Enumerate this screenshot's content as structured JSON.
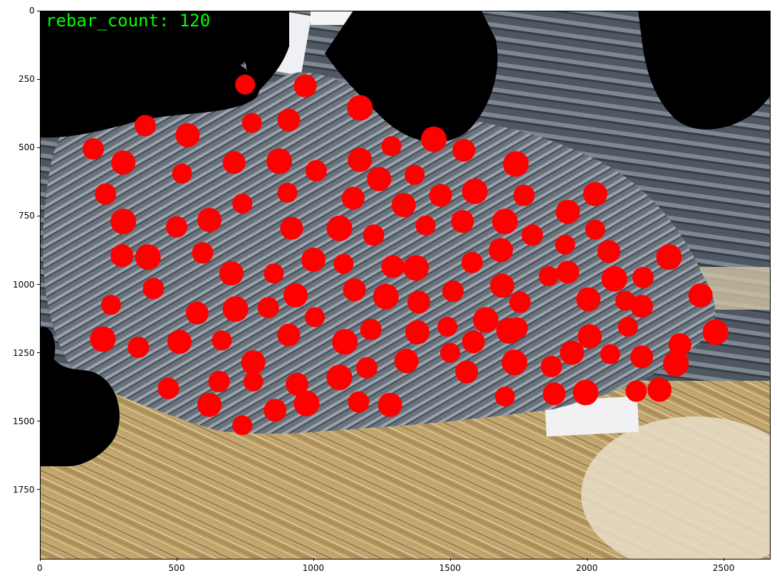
{
  "overlay": {
    "count_text": "rebar_count: 120",
    "count_color": "#00ff00",
    "marker_color": "#ff0000",
    "mask_color": "#000000"
  },
  "scene": {
    "description_icon": "rebar-bundle-photo"
  },
  "axes": {
    "x_ticks": [
      {
        "value": 0,
        "label": "0"
      },
      {
        "value": 500,
        "label": "500"
      },
      {
        "value": 1000,
        "label": "1000"
      },
      {
        "value": 1500,
        "label": "1500"
      },
      {
        "value": 2000,
        "label": "2000"
      },
      {
        "value": 2500,
        "label": "2500"
      }
    ],
    "y_ticks": [
      {
        "value": 0,
        "label": "0"
      },
      {
        "value": 250,
        "label": "250"
      },
      {
        "value": 500,
        "label": "500"
      },
      {
        "value": 750,
        "label": "750"
      },
      {
        "value": 1000,
        "label": "1000"
      },
      {
        "value": 1250,
        "label": "1250"
      },
      {
        "value": 1500,
        "label": "1500"
      },
      {
        "value": 1750,
        "label": "1750"
      }
    ],
    "x_range": [
      0,
      2666
    ],
    "y_range": [
      2000,
      0
    ]
  },
  "detections": [
    [
      750,
      270
    ],
    [
      970,
      275
    ],
    [
      1170,
      355
    ],
    [
      385,
      420
    ],
    [
      540,
      455
    ],
    [
      775,
      410
    ],
    [
      910,
      400
    ],
    [
      1440,
      470
    ],
    [
      195,
      505
    ],
    [
      305,
      555
    ],
    [
      520,
      595
    ],
    [
      710,
      555
    ],
    [
      875,
      550
    ],
    [
      1010,
      585
    ],
    [
      1170,
      545
    ],
    [
      1285,
      495
    ],
    [
      1550,
      510
    ],
    [
      1740,
      560
    ],
    [
      240,
      670
    ],
    [
      1240,
      615
    ],
    [
      1370,
      600
    ],
    [
      1465,
      675
    ],
    [
      1590,
      660
    ],
    [
      1770,
      675
    ],
    [
      2030,
      670
    ],
    [
      905,
      665
    ],
    [
      1145,
      685
    ],
    [
      305,
      770
    ],
    [
      500,
      790
    ],
    [
      620,
      765
    ],
    [
      740,
      705
    ],
    [
      920,
      795
    ],
    [
      1095,
      795
    ],
    [
      1220,
      820
    ],
    [
      1330,
      710
    ],
    [
      1410,
      785
    ],
    [
      1545,
      770
    ],
    [
      1700,
      770
    ],
    [
      1800,
      820
    ],
    [
      1930,
      735
    ],
    [
      2030,
      800
    ],
    [
      300,
      895
    ],
    [
      395,
      900
    ],
    [
      595,
      885
    ],
    [
      1000,
      910
    ],
    [
      1110,
      925
    ],
    [
      1290,
      935
    ],
    [
      1375,
      940
    ],
    [
      1580,
      920
    ],
    [
      1685,
      875
    ],
    [
      1920,
      855
    ],
    [
      2080,
      880
    ],
    [
      2300,
      900
    ],
    [
      415,
      1015
    ],
    [
      700,
      960
    ],
    [
      855,
      960
    ],
    [
      1150,
      1020
    ],
    [
      1265,
      1045
    ],
    [
      1510,
      1025
    ],
    [
      1690,
      1005
    ],
    [
      1860,
      970
    ],
    [
      1930,
      955
    ],
    [
      2100,
      980
    ],
    [
      2205,
      975
    ],
    [
      2415,
      1040
    ],
    [
      260,
      1075
    ],
    [
      575,
      1105
    ],
    [
      715,
      1090
    ],
    [
      835,
      1085
    ],
    [
      935,
      1040
    ],
    [
      1005,
      1120
    ],
    [
      1385,
      1065
    ],
    [
      1630,
      1130
    ],
    [
      1755,
      1065
    ],
    [
      2005,
      1055
    ],
    [
      2140,
      1060
    ],
    [
      2200,
      1080
    ],
    [
      230,
      1200
    ],
    [
      360,
      1230
    ],
    [
      510,
      1210
    ],
    [
      665,
      1205
    ],
    [
      910,
      1185
    ],
    [
      1115,
      1210
    ],
    [
      1210,
      1165
    ],
    [
      1380,
      1175
    ],
    [
      1490,
      1155
    ],
    [
      1585,
      1210
    ],
    [
      1715,
      1170
    ],
    [
      1745,
      1160
    ],
    [
      2010,
      1190
    ],
    [
      2150,
      1155
    ],
    [
      2340,
      1220
    ],
    [
      2470,
      1175
    ],
    [
      655,
      1355
    ],
    [
      780,
      1285
    ],
    [
      780,
      1355
    ],
    [
      940,
      1365
    ],
    [
      1095,
      1340
    ],
    [
      1195,
      1305
    ],
    [
      1340,
      1280
    ],
    [
      1500,
      1250
    ],
    [
      1560,
      1320
    ],
    [
      1735,
      1285
    ],
    [
      1870,
      1300
    ],
    [
      1945,
      1250
    ],
    [
      2085,
      1255
    ],
    [
      2200,
      1265
    ],
    [
      2325,
      1290
    ],
    [
      470,
      1380
    ],
    [
      620,
      1440
    ],
    [
      740,
      1515
    ],
    [
      860,
      1460
    ],
    [
      975,
      1435
    ],
    [
      1165,
      1430
    ],
    [
      1280,
      1440
    ],
    [
      1700,
      1410
    ],
    [
      1880,
      1400
    ],
    [
      1995,
      1395
    ],
    [
      2180,
      1390
    ],
    [
      2265,
      1385
    ]
  ]
}
